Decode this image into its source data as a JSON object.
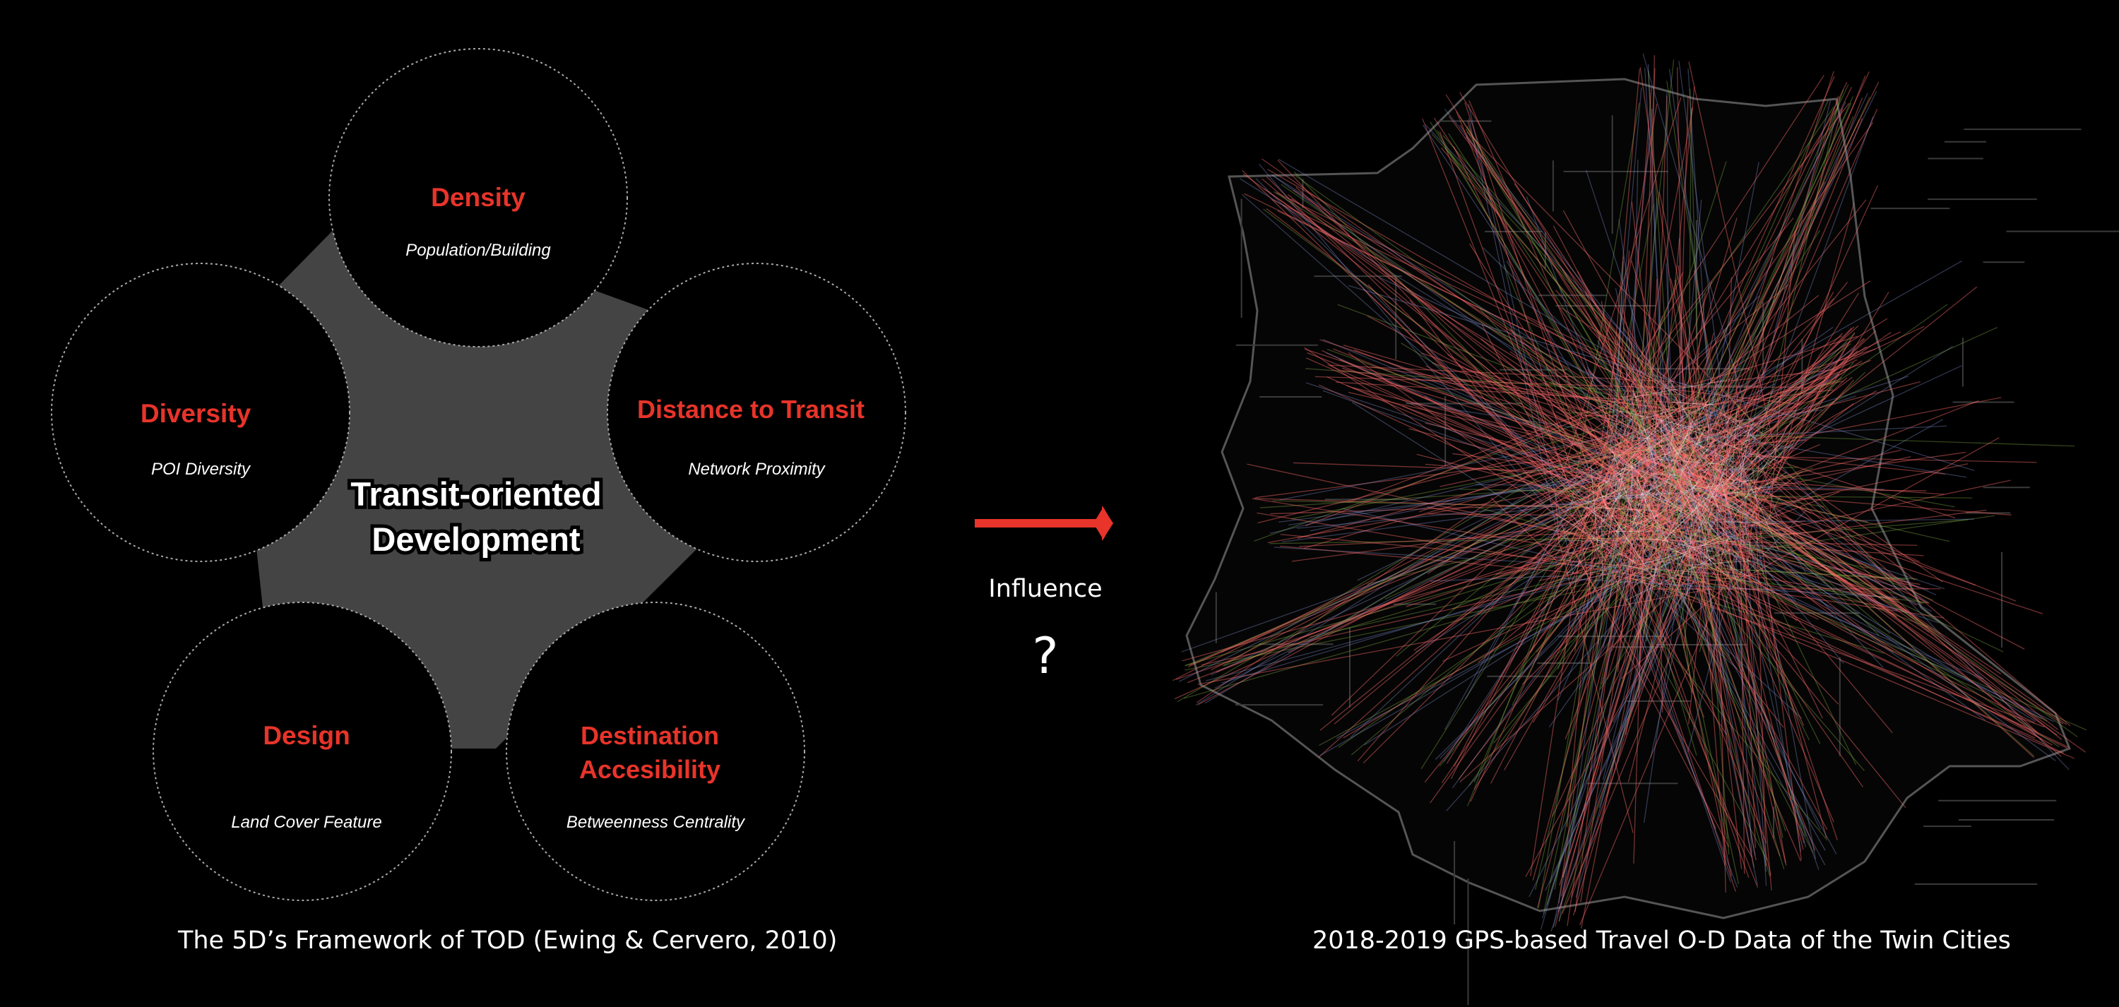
{
  "framework": {
    "center_label_line1": "Transit-oriented",
    "center_label_line2": "Development",
    "caption": "The 5D’s Framework of TOD (Ewing & Cervero, 2010)",
    "items": [
      {
        "title": "Density",
        "subtitle": "Population/Building"
      },
      {
        "title": "Distance to Transit",
        "subtitle": "Network Proximity"
      },
      {
        "title_line1": "Destination",
        "title_line2": "Accesibility",
        "subtitle": "Betweenness Centrality"
      },
      {
        "title": "Design",
        "subtitle": "Land Cover Feature"
      },
      {
        "title": "Diversity",
        "subtitle": "POI Diversity"
      }
    ]
  },
  "relation": {
    "label": "Influence",
    "question": "?"
  },
  "map": {
    "caption": "2018-2019 GPS-based Travel O-D Data of the Twin Cities"
  },
  "colors": {
    "accent_red": "#e8342a",
    "pentagon_fill": "#444444",
    "od_red": "#ff6b6b",
    "od_green": "#8fbf4a",
    "od_blue": "#8a9ae0"
  }
}
